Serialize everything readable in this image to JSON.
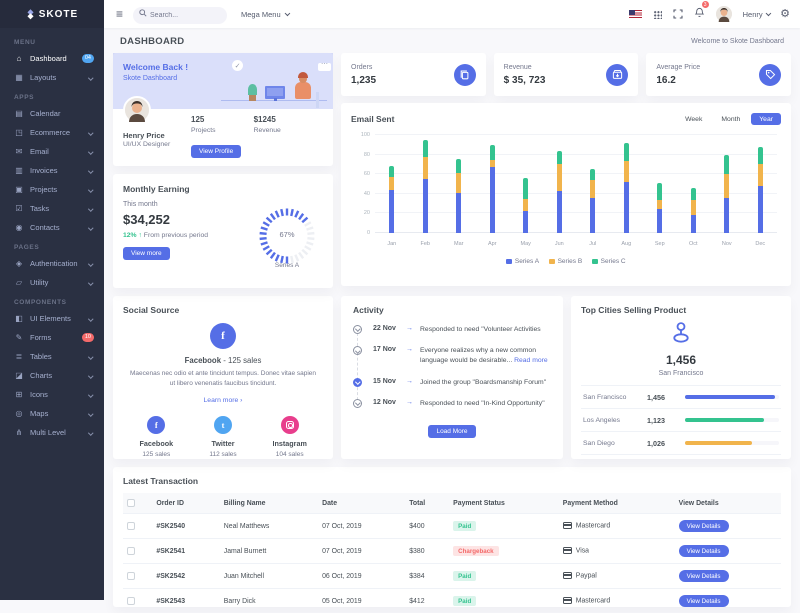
{
  "colors": {
    "primary": "#556ee6",
    "success": "#34c38f",
    "warning": "#f1b44c",
    "danger": "#f46a6a",
    "info": "#50a5f1",
    "pink": "#e83e8c",
    "sidebar_bg": "#2a3042",
    "body_bg": "#f8f8fb"
  },
  "icon_glyphs": {
    "home-icon": "⌂",
    "layouts-icon": "▦",
    "calendar-icon": "▤",
    "ecommerce-icon": "◳",
    "email-icon": "✉",
    "invoice-icon": "▥",
    "projects-icon": "▣",
    "tasks-icon": "☑",
    "contacts-icon": "◉",
    "auth-icon": "◈",
    "utility-icon": "▱",
    "ui-elements-icon": "◧",
    "forms-icon": "✎",
    "tables-icon": "≣",
    "charts-icon": "◪",
    "icons-icon": "⊞",
    "maps-icon": "◎",
    "multilevel-icon": "⋔"
  },
  "sidebar": {
    "logo": "SKOTE",
    "sections": [
      {
        "label": "MENU",
        "items": [
          {
            "label": "Dashboard",
            "icon": "home-icon",
            "badge": "04",
            "badge_color": "info",
            "active": true
          },
          {
            "label": "Layouts",
            "icon": "layouts-icon",
            "chevron": true
          }
        ]
      },
      {
        "label": "APPS",
        "items": [
          {
            "label": "Calendar",
            "icon": "calendar-icon"
          },
          {
            "label": "Ecommerce",
            "icon": "ecommerce-icon",
            "chevron": true
          },
          {
            "label": "Email",
            "icon": "email-icon",
            "chevron": true
          },
          {
            "label": "Invoices",
            "icon": "invoice-icon",
            "chevron": true
          },
          {
            "label": "Projects",
            "icon": "projects-icon",
            "chevron": true
          },
          {
            "label": "Tasks",
            "icon": "tasks-icon",
            "chevron": true
          },
          {
            "label": "Contacts",
            "icon": "contacts-icon",
            "chevron": true
          }
        ]
      },
      {
        "label": "PAGES",
        "items": [
          {
            "label": "Authentication",
            "icon": "auth-icon",
            "chevron": true
          },
          {
            "label": "Utility",
            "icon": "utility-icon",
            "chevron": true
          }
        ]
      },
      {
        "label": "COMPONENTS",
        "items": [
          {
            "label": "UI Elements",
            "icon": "ui-elements-icon",
            "chevron": true
          },
          {
            "label": "Forms",
            "icon": "forms-icon",
            "badge": "10",
            "badge_color": "danger"
          },
          {
            "label": "Tables",
            "icon": "tables-icon",
            "chevron": true
          },
          {
            "label": "Charts",
            "icon": "charts-icon",
            "chevron": true
          },
          {
            "label": "Icons",
            "icon": "icons-icon",
            "chevron": true
          },
          {
            "label": "Maps",
            "icon": "maps-icon",
            "chevron": true
          },
          {
            "label": "Multi Level",
            "icon": "multilevel-icon",
            "chevron": true
          }
        ]
      }
    ]
  },
  "header": {
    "search_placeholder": "Search...",
    "mega_menu_label": "Mega Menu",
    "notification_count": "3",
    "user_name": "Henry"
  },
  "page": {
    "title": "DASHBOARD",
    "welcome_text": "Welcome to Skote Dashboard"
  },
  "welcome_card": {
    "title": "Welcome Back !",
    "subtitle": "Skote Dashboard",
    "user_name": "Henry Price",
    "user_role": "UI/UX Designer",
    "projects_value": "125",
    "projects_label": "Projects",
    "revenue_value": "$1245",
    "revenue_label": "Revenue",
    "button_label": "View Profile"
  },
  "stats": [
    {
      "label": "Orders",
      "value": "1,235",
      "icon": "copy-icon"
    },
    {
      "label": "Revenue",
      "value": "$ 35, 723",
      "icon": "archive-icon"
    },
    {
      "label": "Average Price",
      "value": "16.2",
      "icon": "tag-icon"
    }
  ],
  "monthly_earning": {
    "title": "Monthly Earning",
    "period_label": "This month",
    "amount": "$34,252",
    "change_pct": "12%",
    "change_arrow": "↑",
    "change_text": "From previous period",
    "button_label": "View more",
    "gauge_value": 67,
    "gauge_pct_label": "67%",
    "gauge_series_label": "Series A"
  },
  "email_sent": {
    "title": "Email Sent",
    "tabs": [
      "Week",
      "Month",
      "Year"
    ],
    "active_tab": "Year"
  },
  "chart_data": {
    "type": "bar",
    "stacked": true,
    "title": "Email Sent",
    "categories": [
      "Jan",
      "Feb",
      "Mar",
      "Apr",
      "May",
      "Jun",
      "Jul",
      "Aug",
      "Sep",
      "Oct",
      "Nov",
      "Dec"
    ],
    "series": [
      {
        "name": "Series A",
        "color": "#556ee6",
        "values": [
          44,
          55,
          41,
          67,
          22,
          43,
          36,
          52,
          24,
          18,
          36,
          48
        ]
      },
      {
        "name": "Series B",
        "color": "#f1b44c",
        "values": [
          13,
          23,
          20,
          8,
          13,
          27,
          18,
          22,
          10,
          16,
          24,
          22
        ]
      },
      {
        "name": "Series C",
        "color": "#34c38f",
        "values": [
          11,
          17,
          15,
          15,
          21,
          14,
          11,
          18,
          17,
          12,
          20,
          18
        ]
      }
    ],
    "xlabel": "",
    "ylabel": "",
    "ylim": [
      0,
      100
    ],
    "yticks": [
      0,
      20,
      40,
      60,
      80,
      100
    ],
    "grid": true,
    "legend_position": "bottom"
  },
  "social": {
    "title": "Social Source",
    "headline_network": "Facebook",
    "headline_rest": "- 125 sales",
    "description": "Maecenas nec odio et ante tincidunt tempus. Donec vitae sapien ut libero venenatis faucibus tincidunt.",
    "link_label": "Learn more ›",
    "items": [
      {
        "name": "Facebook",
        "sales": "125 sales",
        "color": "#556ee6",
        "icon": "facebook-icon",
        "glyph": "f"
      },
      {
        "name": "Twitter",
        "sales": "112 sales",
        "color": "#50a5f1",
        "icon": "twitter-icon",
        "glyph": "t"
      },
      {
        "name": "Instagram",
        "sales": "104 sales",
        "color": "#e83e8c",
        "icon": "instagram-icon",
        "glyph": ""
      }
    ]
  },
  "activity": {
    "title": "Activity",
    "items": [
      {
        "date": "22 Nov",
        "text": "Responded to need \"Volunteer Activities"
      },
      {
        "date": "17 Nov",
        "text": "Everyone realizes why a new common language would be desirable...",
        "link": "Read more"
      },
      {
        "date": "15 Nov",
        "text": "Joined the group \"Boardsmanship Forum\"",
        "active": true
      },
      {
        "date": "12 Nov",
        "text": "Responded to need \"In-Kind Opportunity\""
      }
    ],
    "button_label": "Load More"
  },
  "top_cities": {
    "title": "Top Cities Selling Product",
    "highlight_value": "1,456",
    "highlight_city": "San Francisco",
    "rows": [
      {
        "city": "San Francisco",
        "value": "1,456",
        "color": "#556ee6",
        "pct": 96
      },
      {
        "city": "Los Angeles",
        "value": "1,123",
        "color": "#34c38f",
        "pct": 84
      },
      {
        "city": "San Diego",
        "value": "1,026",
        "color": "#f1b44c",
        "pct": 71
      }
    ]
  },
  "transactions": {
    "title": "Latest Transaction",
    "columns": [
      "Order ID",
      "Billing Name",
      "Date",
      "Total",
      "Payment Status",
      "Payment Method",
      "View Details"
    ],
    "rows": [
      {
        "id": "#SK2540",
        "name": "Neal Matthews",
        "date": "07 Oct, 2019",
        "total": "$400",
        "status": "Paid",
        "status_color": "success",
        "method": "Mastercard",
        "method_icon": "mastercard-icon",
        "action": "View Details"
      },
      {
        "id": "#SK2541",
        "name": "Jamal Burnett",
        "date": "07 Oct, 2019",
        "total": "$380",
        "status": "Chargeback",
        "status_color": "danger",
        "method": "Visa",
        "method_icon": "visa-icon",
        "action": "View Details"
      },
      {
        "id": "#SK2542",
        "name": "Juan Mitchell",
        "date": "06 Oct, 2019",
        "total": "$384",
        "status": "Paid",
        "status_color": "success",
        "method": "Paypal",
        "method_icon": "paypal-icon",
        "action": "View Details"
      },
      {
        "id": "#SK2543",
        "name": "Barry Dick",
        "date": "05 Oct, 2019",
        "total": "$412",
        "status": "Paid",
        "status_color": "success",
        "method": "Mastercard",
        "method_icon": "mastercard-icon",
        "action": "View Details"
      }
    ]
  }
}
